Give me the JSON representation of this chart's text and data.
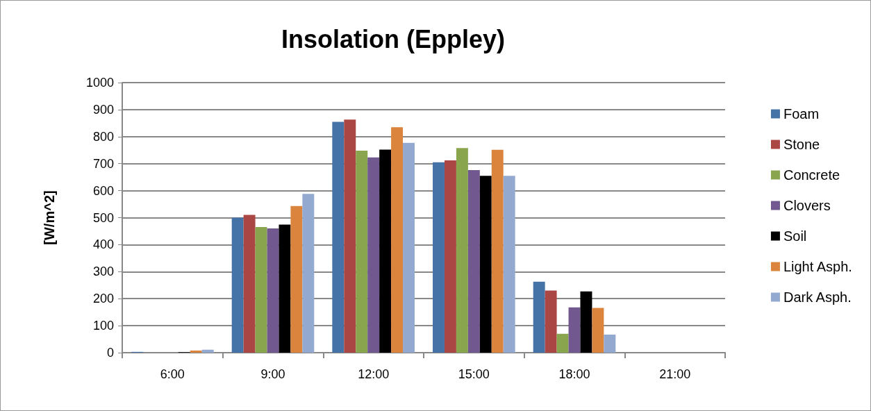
{
  "chart_data": {
    "type": "bar",
    "title": "Insolation (Eppley)",
    "ylabel": "[W/m^2]",
    "categories": [
      "6:00",
      "9:00",
      "12:00",
      "15:00",
      "18:00",
      "21:00"
    ],
    "series": [
      {
        "name": "Foam",
        "color": "#4572a7",
        "values": [
          3,
          500,
          855,
          705,
          263,
          0
        ]
      },
      {
        "name": "Stone",
        "color": "#aa4643",
        "values": [
          null,
          510,
          863,
          712,
          230,
          0
        ]
      },
      {
        "name": "Concrete",
        "color": "#89a54e",
        "values": [
          null,
          465,
          748,
          758,
          70,
          0
        ]
      },
      {
        "name": "Clovers",
        "color": "#71588f",
        "values": [
          null,
          460,
          723,
          676,
          168,
          0
        ]
      },
      {
        "name": "Soil",
        "color": "#000000",
        "values": [
          2,
          474,
          752,
          655,
          227,
          0
        ]
      },
      {
        "name": "Light Asph.",
        "color": "#db843d",
        "values": [
          8,
          543,
          835,
          751,
          166,
          0
        ]
      },
      {
        "name": "Dark Asph.",
        "color": "#93a9cf",
        "values": [
          11,
          588,
          777,
          655,
          67,
          0
        ]
      }
    ],
    "ylim": [
      0,
      1000
    ],
    "yticks": [
      0,
      100,
      200,
      300,
      400,
      500,
      600,
      700,
      800,
      900,
      1000
    ],
    "grid": "y",
    "legend": "right"
  }
}
